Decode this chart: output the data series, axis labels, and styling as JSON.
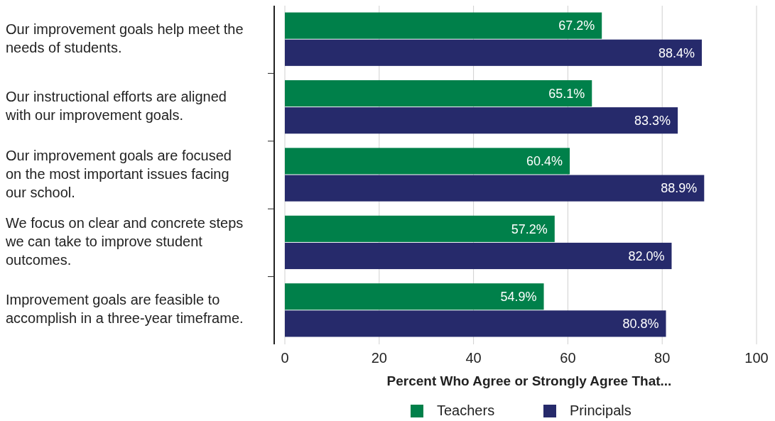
{
  "chart_data": {
    "type": "bar",
    "orientation": "horizontal",
    "xlabel": "Percent Who Agree or Strongly Agree That...",
    "categories": [
      "Our improvement goals help meet the needs of students.",
      "Our instructional efforts are aligned with our improvement goals.",
      "Our improvement goals are focused on the most important issues facing our school.",
      "We focus on clear and concrete steps we can take to improve student outcomes.",
      "Improvement goals are feasible to accomplish in a three-year timeframe."
    ],
    "series": [
      {
        "name": "Teachers",
        "color": "#00804a",
        "values": [
          67.2,
          65.1,
          60.4,
          57.2,
          54.9
        ],
        "value_labels": [
          "67.2%",
          "65.1%",
          "60.4%",
          "57.2%",
          "54.9%"
        ]
      },
      {
        "name": "Principals",
        "color": "#262a6b",
        "values": [
          88.4,
          83.3,
          88.9,
          82.0,
          80.8
        ],
        "value_labels": [
          "88.4%",
          "83.3%",
          "88.9%",
          "82.0%",
          "80.8%"
        ]
      }
    ],
    "xlim": [
      0,
      100
    ],
    "xticks": [
      0,
      20,
      40,
      60,
      80,
      100
    ],
    "grid": "x",
    "legend": "bottom"
  }
}
